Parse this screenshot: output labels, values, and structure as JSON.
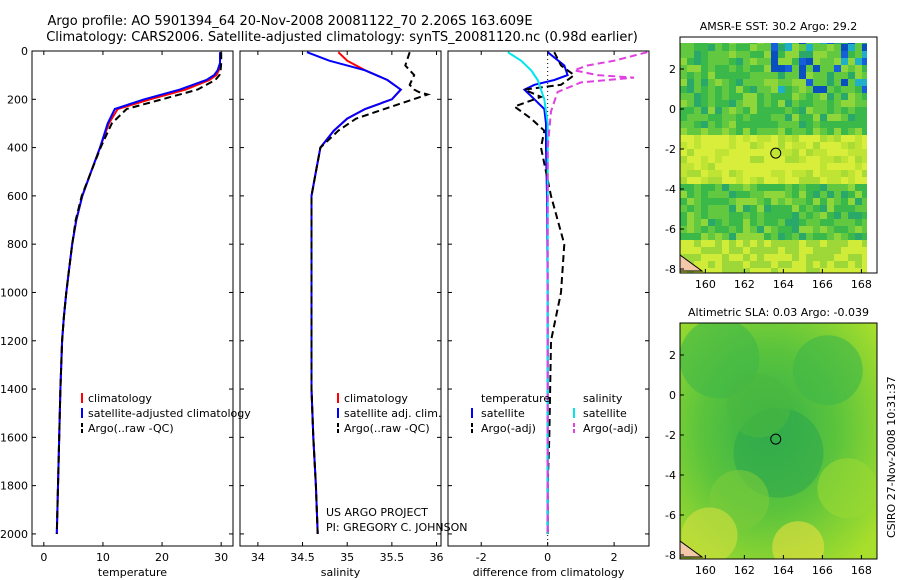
{
  "titles": {
    "line1": "Argo profile: AO 5901394_64 20-Nov-2008 20081122_70 2.206S 163.609E",
    "line2": "Climatology: CARS2006. Satellite-adjusted climatology: synTS_20081120.nc (0.98d earlier)"
  },
  "footer": {
    "project": "US ARGO PROJECT",
    "pi": "PI: GREGORY C. JOHNSON",
    "stamp": "CSIRO 27-Nov-2008 10:31:37"
  },
  "colors": {
    "climatology": "#ff0000",
    "satellite": "#0000ff",
    "argo": "#000000",
    "sat_salinity": "#00e5ee",
    "argo_salinity": "#e040e0"
  },
  "chart_data": [
    {
      "id": "temperature",
      "type": "line",
      "xlabel": "temperature",
      "ylabel": "",
      "xlim": [
        -2,
        32
      ],
      "ylim": [
        2050,
        0
      ],
      "xticks": [
        0,
        10,
        20,
        30
      ],
      "yticks": [
        0,
        200,
        400,
        600,
        800,
        1000,
        1200,
        1400,
        1600,
        1800,
        2000
      ],
      "legend": [
        "climatology",
        "satellite-adjusted climatology",
        "Argo(..raw -QC)"
      ],
      "series": [
        {
          "name": "climatology",
          "color": "#ff0000",
          "dash": false,
          "x": [
            29.8,
            29.8,
            29.6,
            29.2,
            28.0,
            24.0,
            18.0,
            12.5,
            11.0,
            9.5,
            8.0,
            6.5,
            5.5,
            4.8,
            4.3,
            3.8,
            3.4,
            3.1,
            2.8,
            2.6,
            2.4,
            2.3,
            2.2
          ],
          "y": [
            5,
            50,
            80,
            100,
            120,
            160,
            200,
            240,
            300,
            400,
            500,
            600,
            700,
            800,
            900,
            1000,
            1100,
            1200,
            1400,
            1600,
            1800,
            1900,
            2000
          ]
        },
        {
          "name": "satellite-adjusted climatology",
          "color": "#0000ff",
          "dash": false,
          "x": [
            29.8,
            29.8,
            29.4,
            28.8,
            27.5,
            23.0,
            17.0,
            12.0,
            10.8,
            9.5,
            8.0,
            6.5,
            5.5,
            4.8,
            4.3,
            3.8,
            3.4,
            3.1,
            2.8,
            2.6,
            2.4,
            2.3,
            2.2
          ],
          "y": [
            5,
            50,
            80,
            100,
            120,
            160,
            200,
            240,
            300,
            400,
            500,
            600,
            700,
            800,
            900,
            1000,
            1100,
            1200,
            1400,
            1600,
            1800,
            1900,
            2000
          ]
        },
        {
          "name": "Argo(..raw -QC)",
          "color": "#000000",
          "dash": true,
          "x": [
            30.0,
            30.0,
            29.9,
            29.7,
            29.0,
            26.0,
            20.0,
            14.0,
            11.5,
            9.6,
            8.0,
            6.4,
            5.4,
            4.8,
            4.3,
            3.8,
            3.4,
            3.1,
            2.8,
            2.6,
            2.4,
            2.3,
            2.2
          ],
          "y": [
            5,
            50,
            80,
            100,
            120,
            160,
            200,
            240,
            300,
            400,
            500,
            600,
            700,
            800,
            900,
            1000,
            1100,
            1200,
            1400,
            1600,
            1800,
            1900,
            2000
          ]
        }
      ]
    },
    {
      "id": "salinity",
      "type": "line",
      "xlabel": "salinity",
      "ylabel": "",
      "xlim": [
        33.8,
        36.05
      ],
      "ylim": [
        2050,
        0
      ],
      "xticks": [
        34,
        34.5,
        35,
        35.5,
        36
      ],
      "yticks": [],
      "legend": [
        "climatology",
        "satellite adj. clim.",
        "Argo(..raw -QC)"
      ],
      "series": [
        {
          "name": "climatology",
          "color": "#ff0000",
          "dash": false,
          "x": [
            34.9,
            35.0,
            35.2,
            35.45,
            35.6,
            35.5,
            35.2,
            35.0,
            34.85,
            34.7,
            34.65,
            34.6,
            34.6,
            34.6,
            34.6,
            34.6,
            34.62,
            34.65,
            34.67
          ],
          "y": [
            5,
            40,
            80,
            120,
            160,
            200,
            240,
            280,
            330,
            400,
            500,
            600,
            800,
            1000,
            1200,
            1400,
            1600,
            1800,
            2000
          ]
        },
        {
          "name": "satellite adj. clim.",
          "color": "#0000ff",
          "dash": false,
          "x": [
            34.55,
            34.8,
            35.2,
            35.45,
            35.6,
            35.5,
            35.2,
            35.0,
            34.85,
            34.7,
            34.65,
            34.6,
            34.6,
            34.6,
            34.6,
            34.6,
            34.62,
            34.65,
            34.67
          ],
          "y": [
            5,
            40,
            80,
            120,
            160,
            200,
            240,
            280,
            330,
            400,
            500,
            600,
            800,
            1000,
            1200,
            1400,
            1600,
            1800,
            2000
          ]
        },
        {
          "name": "Argo(..raw -QC)",
          "color": "#000000",
          "dash": true,
          "x": [
            35.7,
            35.65,
            35.75,
            35.7,
            35.75,
            35.8,
            35.9,
            35.5,
            35.1,
            34.9,
            34.7,
            34.65,
            34.6,
            34.6,
            34.6,
            34.6,
            34.6,
            34.62,
            34.65,
            34.67
          ],
          "y": [
            5,
            60,
            100,
            140,
            160,
            170,
            180,
            230,
            280,
            330,
            400,
            500,
            600,
            800,
            1000,
            1200,
            1400,
            1600,
            1800,
            2000
          ]
        }
      ]
    },
    {
      "id": "difference",
      "type": "line",
      "xlabel": "difference from climatology",
      "ylabel": "",
      "xlim": [
        -3,
        3.05
      ],
      "ylim": [
        2050,
        0
      ],
      "xticks": [
        -2,
        0,
        2
      ],
      "yticks": [],
      "legend": [
        "temperature",
        "satellite",
        "Argo(-adj)",
        "salinity",
        "satellite",
        "Argo(-adj)"
      ],
      "series": [
        {
          "name": "temperature satellite",
          "color": "#0000ff",
          "dash": false,
          "x": [
            0,
            0.5,
            0.6,
            0.2,
            -0.4,
            -0.7,
            -0.4,
            -0.1,
            -0.05,
            -0.05,
            -0.02,
            0,
            0
          ],
          "y": [
            5,
            60,
            100,
            120,
            140,
            160,
            200,
            240,
            300,
            400,
            600,
            1000,
            2000
          ]
        },
        {
          "name": "temperature Argo(-adj)",
          "color": "#000000",
          "dash": true,
          "x": [
            0.2,
            0.4,
            0.8,
            0.4,
            -0.7,
            -0.2,
            -1.0,
            -0.5,
            -0.1,
            -0.2,
            0.1,
            0.5,
            0.4,
            0.1,
            0.05,
            0,
            0
          ],
          "y": [
            5,
            60,
            100,
            140,
            160,
            190,
            230,
            280,
            330,
            400,
            600,
            800,
            1000,
            1200,
            1600,
            1800,
            2000
          ]
        },
        {
          "name": "salinity satellite",
          "color": "#00e5ee",
          "dash": false,
          "x": [
            -1.2,
            -0.8,
            -0.5,
            -0.3,
            -0.1,
            0,
            0,
            0
          ],
          "y": [
            5,
            40,
            80,
            120,
            200,
            300,
            1000,
            2000
          ]
        },
        {
          "name": "salinity Argo(-adj)",
          "color": "#e040e0",
          "dash": true,
          "x": [
            3.0,
            2.0,
            1.2,
            0.8,
            1.5,
            2.6,
            1.0,
            0.3,
            0.1,
            0,
            0,
            0
          ],
          "y": [
            5,
            40,
            60,
            80,
            100,
            110,
            130,
            170,
            250,
            400,
            1000,
            2000
          ]
        }
      ]
    },
    {
      "id": "amsre-sst",
      "type": "heatmap",
      "title": "AMSR-E SST: 30.2 Argo: 29.2",
      "xlim": [
        158.7,
        168.8
      ],
      "ylim": [
        -8.2,
        3.6
      ],
      "xticks": [
        160,
        162,
        164,
        166,
        168
      ],
      "yticks": [
        -8,
        -6,
        -4,
        -2,
        0,
        2
      ],
      "marker": {
        "x": 163.609,
        "y": -2.206
      }
    },
    {
      "id": "altimetric-sla",
      "type": "heatmap",
      "title": "Altimetric SLA: 0.03 Argo: -0.039",
      "xlim": [
        158.7,
        168.8
      ],
      "ylim": [
        -8.2,
        3.6
      ],
      "xticks": [
        160,
        162,
        164,
        166,
        168
      ],
      "yticks": [
        -8,
        -6,
        -4,
        -2,
        0,
        2
      ],
      "marker": {
        "x": 163.609,
        "y": -2.206
      }
    }
  ]
}
